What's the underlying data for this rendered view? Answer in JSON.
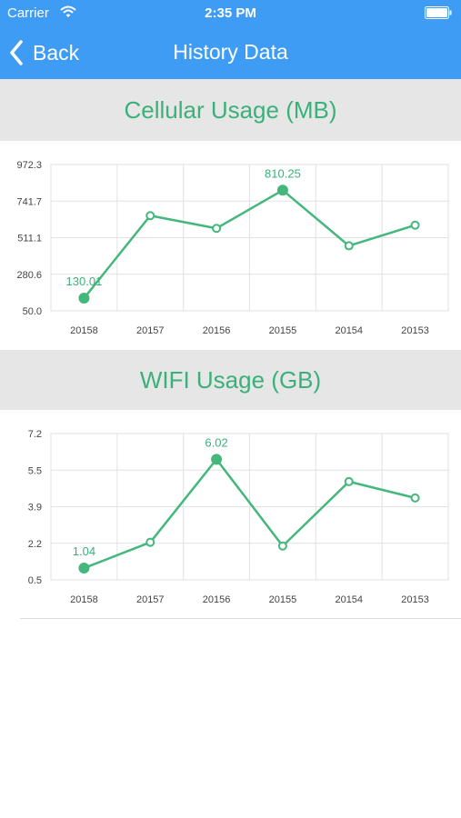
{
  "status": {
    "carrier": "Carrier",
    "time": "2:35 PM"
  },
  "nav": {
    "back_label": "Back",
    "title": "History Data"
  },
  "colors": {
    "bar": "#3f9cf5",
    "accent": "#3bb07b",
    "line": "#43b77c",
    "grid": "#e2e2e2",
    "header_bg": "#e6e6e6"
  },
  "icons": {
    "back": "chevron-left-icon",
    "wifi": "wifi-icon",
    "battery": "battery-icon"
  },
  "sections": [
    {
      "title": "Cellular Usage (MB)"
    },
    {
      "title": "WIFI Usage (GB)"
    }
  ],
  "chart_data": [
    {
      "type": "line",
      "title": "Cellular Usage (MB)",
      "categories": [
        "20158",
        "20157",
        "20156",
        "20155",
        "20154",
        "20153"
      ],
      "values": [
        130.01,
        650,
        570,
        810.25,
        460,
        590
      ],
      "yticks": [
        "972.3",
        "741.7",
        "511.1",
        "280.6",
        "50.0"
      ],
      "ylim": [
        50.0,
        972.3
      ],
      "data_labels": [
        {
          "index": 0,
          "text": "130.01"
        },
        {
          "index": 3,
          "text": "810.25"
        }
      ],
      "grid": true
    },
    {
      "type": "line",
      "title": "WIFI Usage (GB)",
      "categories": [
        "20158",
        "20157",
        "20156",
        "20155",
        "20154",
        "20153"
      ],
      "values": [
        1.04,
        2.22,
        6.02,
        2.05,
        5.0,
        4.25
      ],
      "yticks": [
        "7.2",
        "5.5",
        "3.9",
        "2.2",
        "0.5"
      ],
      "ylim": [
        0.5,
        7.2
      ],
      "data_labels": [
        {
          "index": 0,
          "text": "1.04"
        },
        {
          "index": 2,
          "text": "6.02"
        }
      ],
      "grid": true
    }
  ]
}
